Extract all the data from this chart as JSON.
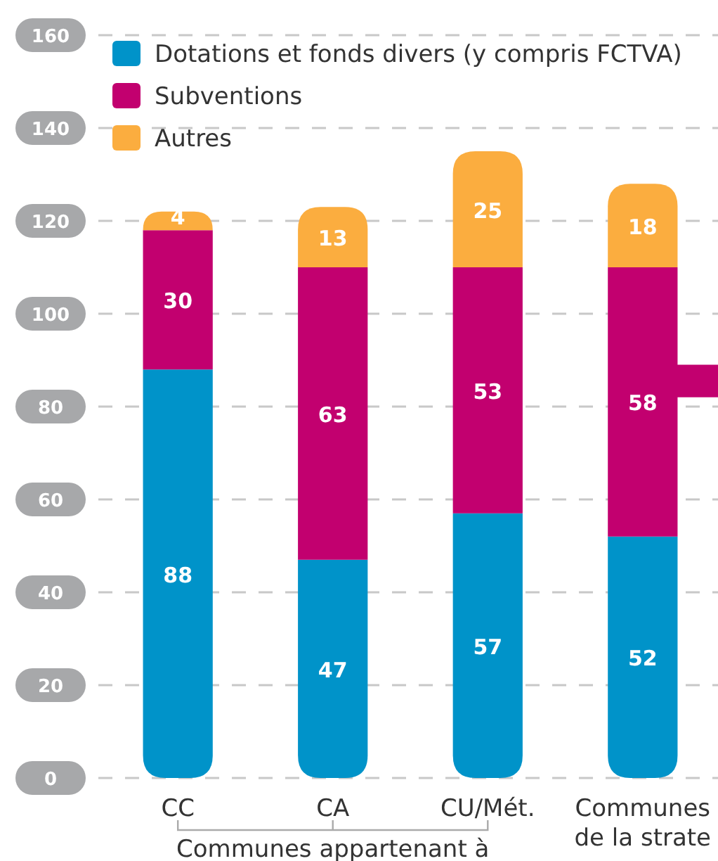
{
  "chart_data": {
    "type": "bar",
    "stacked": true,
    "categories": [
      "CC",
      "CA",
      "CU/Mét.",
      "Communes de la strate"
    ],
    "series": [
      {
        "name": "Dotations et fonds divers (y compris  FCTVA)",
        "color": "#0093c9",
        "values": [
          88,
          47,
          57,
          52
        ]
      },
      {
        "name": "Subventions",
        "color": "#c2006f",
        "values": [
          30,
          63,
          53,
          58
        ]
      },
      {
        "name": "Autres",
        "color": "#fbad3f",
        "values": [
          4,
          13,
          25,
          18
        ]
      }
    ],
    "ylim": [
      0,
      160
    ],
    "yticks": [
      0,
      20,
      40,
      60,
      80,
      100,
      120,
      140,
      160
    ],
    "grid": "y",
    "legend": "top left",
    "data_labels": true,
    "annotations": [
      "Communes appartenant à"
    ]
  }
}
